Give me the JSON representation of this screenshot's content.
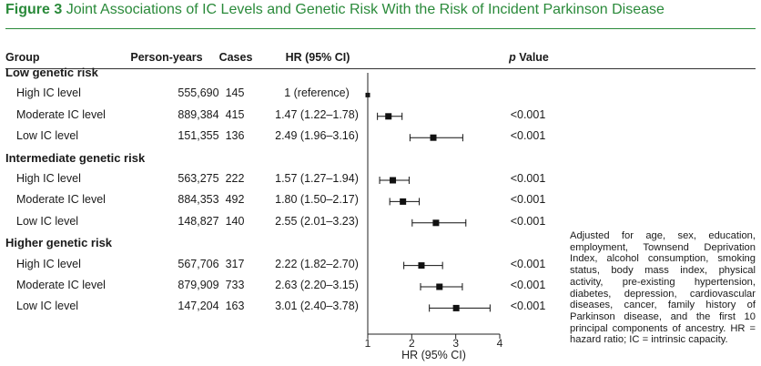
{
  "title": {
    "figure_number": "Figure 3",
    "text": "Joint Associations of IC Levels and Genetic Risk With the Risk of Incident Parkinson Disease"
  },
  "headers": {
    "group": "Group",
    "person_years": "Person-years",
    "cases": "Cases",
    "hr": "HR (95% CI)",
    "p_italic": "p",
    "p_rest": "Value"
  },
  "footnote": "Adjusted for age, sex, education, employment, Townsend Deprivation Index, alcohol consumption, smoking status, body mass index, physical activity, pre-existing hypertension, diabetes, depression, cardiovascular diseases, cancer, family history of Parkinson disease, and the first 10 principal components of ancestry. HR = hazard ratio; IC = intrinsic capacity.",
  "colors": {
    "accent": "#2a8a3a",
    "marker": "#111111"
  },
  "chart_data": {
    "type": "forest",
    "xlabel": "HR (95% CI)",
    "xlim": [
      1,
      4
    ],
    "xticks": [
      1,
      2,
      3,
      4
    ],
    "reference_line": 1,
    "groups": [
      {
        "label": "Low genetic risk",
        "rows": [
          {
            "label": "High IC level",
            "person_years": "555,690",
            "cases": "145",
            "hr_text": "1 (reference)",
            "hr": 1.0,
            "lo": null,
            "hi": null,
            "p": ""
          },
          {
            "label": "Moderate IC level",
            "person_years": "889,384",
            "cases": "415",
            "hr_text": "1.47 (1.22–1.78)",
            "hr": 1.47,
            "lo": 1.22,
            "hi": 1.78,
            "p": "<0.001"
          },
          {
            "label": "Low IC level",
            "person_years": "151,355",
            "cases": "136",
            "hr_text": "2.49 (1.96–3.16)",
            "hr": 2.49,
            "lo": 1.96,
            "hi": 3.16,
            "p": "<0.001"
          }
        ]
      },
      {
        "label": "Intermediate genetic risk",
        "rows": [
          {
            "label": "High IC level",
            "person_years": "563,275",
            "cases": "222",
            "hr_text": "1.57 (1.27–1.94)",
            "hr": 1.57,
            "lo": 1.27,
            "hi": 1.94,
            "p": "<0.001"
          },
          {
            "label": "Moderate IC level",
            "person_years": "884,353",
            "cases": "492",
            "hr_text": "1.80 (1.50–2.17)",
            "hr": 1.8,
            "lo": 1.5,
            "hi": 2.17,
            "p": "<0.001"
          },
          {
            "label": "Low IC level",
            "person_years": "148,827",
            "cases": "140",
            "hr_text": "2.55 (2.01–3.23)",
            "hr": 2.55,
            "lo": 2.01,
            "hi": 3.23,
            "p": "<0.001"
          }
        ]
      },
      {
        "label": "Higher genetic risk",
        "rows": [
          {
            "label": "High IC level",
            "person_years": "567,706",
            "cases": "317",
            "hr_text": "2.22 (1.82–2.70)",
            "hr": 2.22,
            "lo": 1.82,
            "hi": 2.7,
            "p": "<0.001"
          },
          {
            "label": "Moderate IC level",
            "person_years": "879,909",
            "cases": "733",
            "hr_text": "2.63 (2.20–3.15)",
            "hr": 2.63,
            "lo": 2.2,
            "hi": 3.15,
            "p": "<0.001"
          },
          {
            "label": "Low IC level",
            "person_years": "147,204",
            "cases": "163",
            "hr_text": "3.01 (2.40–3.78)",
            "hr": 3.01,
            "lo": 2.4,
            "hi": 3.78,
            "p": "<0.001"
          }
        ]
      }
    ]
  }
}
